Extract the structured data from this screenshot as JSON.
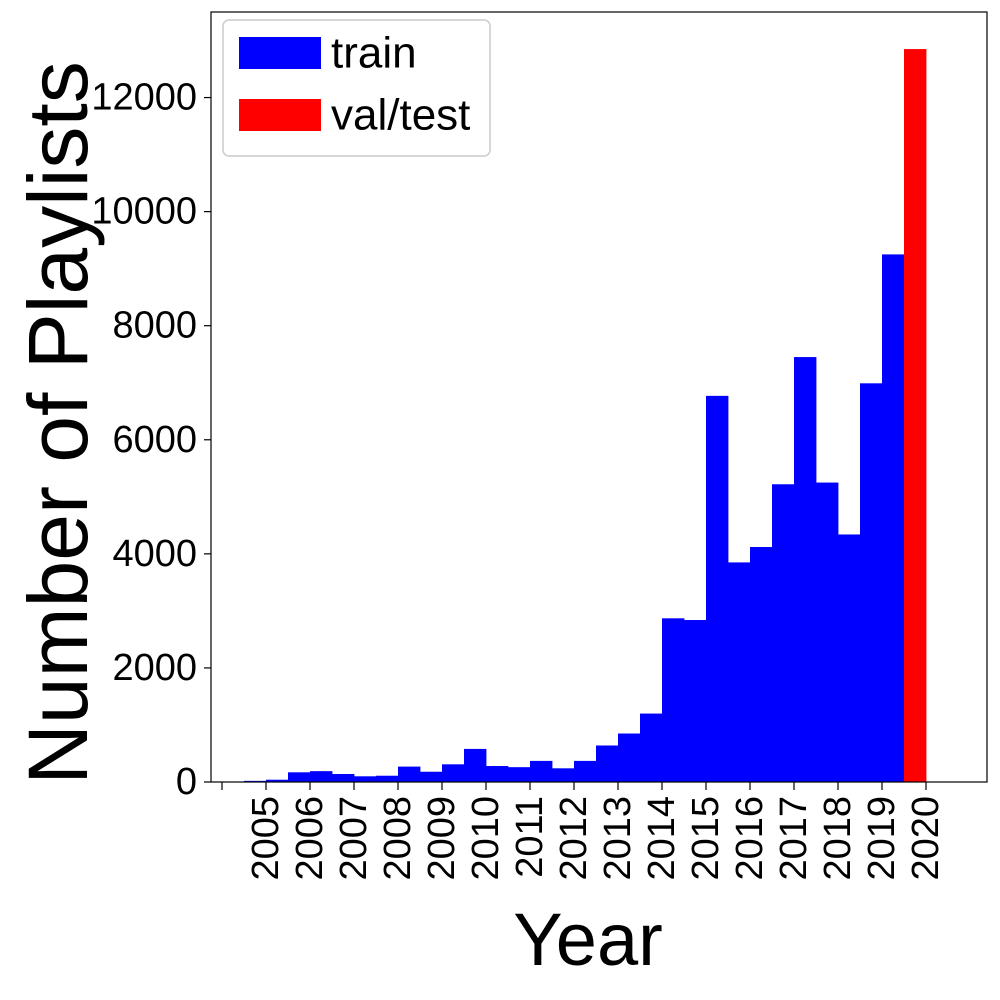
{
  "chart_data": {
    "type": "bar",
    "xlabel": "Year",
    "ylabel": "Number of Playlists",
    "ylim": [
      0,
      13500
    ],
    "yticks": [
      0,
      2000,
      4000,
      6000,
      8000,
      10000,
      12000
    ],
    "tick_labels": [
      "2005",
      "2006",
      "2007",
      "2008",
      "2009",
      "2010",
      "2011",
      "2012",
      "2013",
      "2014",
      "2015",
      "2016",
      "2017",
      "2018",
      "2019",
      "2020"
    ],
    "legend": {
      "placement": "top-left",
      "entries": [
        "train",
        "val/test"
      ]
    },
    "grid": false,
    "series": [
      {
        "name": "train",
        "color": "#0000ff",
        "bins": [
          2004.5,
          2005.0,
          2005.5,
          2006.0,
          2006.5,
          2007.0,
          2007.5,
          2008.0,
          2008.5,
          2009.0,
          2009.5,
          2010.0,
          2010.5,
          2011.0,
          2011.5,
          2012.0,
          2012.5,
          2013.0,
          2013.5,
          2014.0,
          2014.5,
          2015.0,
          2015.5,
          2016.0,
          2016.5,
          2017.0,
          2017.5,
          2018.0,
          2018.5,
          2019.0
        ],
        "values": [
          20,
          40,
          170,
          190,
          140,
          100,
          110,
          270,
          180,
          310,
          580,
          280,
          260,
          370,
          240,
          370,
          640,
          850,
          1200,
          2870,
          2840,
          6770,
          3850,
          4120,
          5220,
          7450,
          5250,
          4340,
          6990,
          9250
        ]
      },
      {
        "name": "val/test",
        "color": "#ff0000",
        "bins": [
          2019.5
        ],
        "values": [
          12850
        ]
      }
    ]
  }
}
